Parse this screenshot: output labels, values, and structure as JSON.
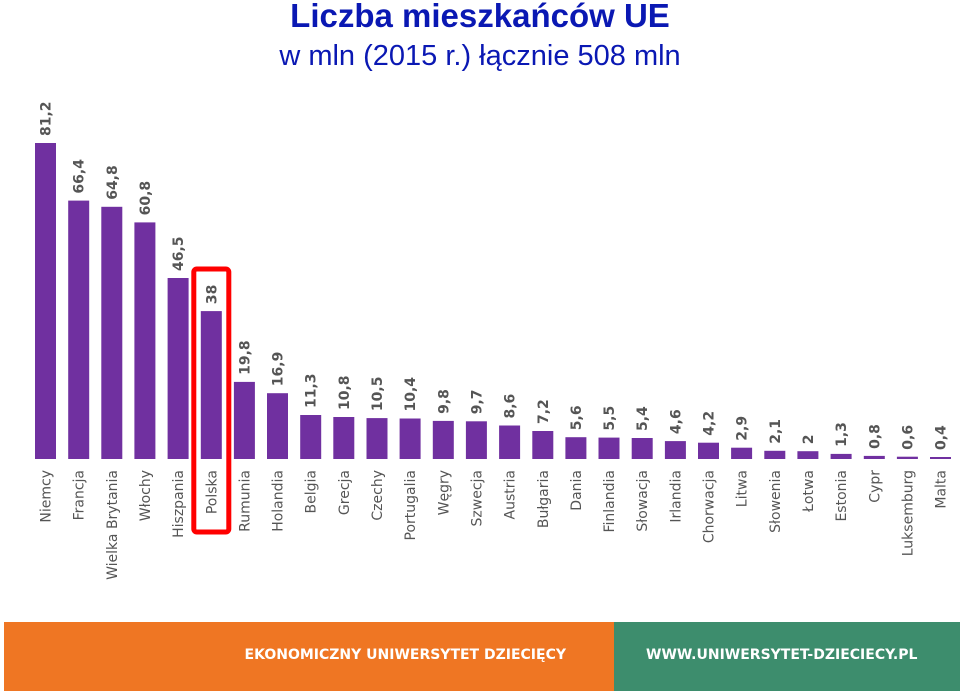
{
  "header": {
    "title": "Liczba mieszkańców UE",
    "subtitle": "w mln (2015 r.) łącznie 508 mln"
  },
  "footer": {
    "left_text": "EKONOMICZNY UNIWERSYTET DZIECIĘCY",
    "right_text": "WWW.UNIWERSYTET-DZIECIECY.PL",
    "left_color": "#ef7623",
    "right_color": "#3d8d6d"
  },
  "colors": {
    "bar": "#7030a0",
    "title": "#0a18b3",
    "highlight_border": "#ff0000",
    "labels": "#555555"
  },
  "chart_data": {
    "type": "bar",
    "title": "Liczba mieszkańców UE",
    "subtitle": "w mln (2015 r.) łącznie 508 mln",
    "xlabel": "",
    "ylabel": "",
    "ylim": [
      0,
      81.2
    ],
    "grid": false,
    "highlight": "Polska",
    "categories": [
      "Niemcy",
      "Francja",
      "Wielka Brytania",
      "Włochy",
      "Hiszpania",
      "Polska",
      "Rumunia",
      "Holandia",
      "Belgia",
      "Grecja",
      "Czechy",
      "Portugalia",
      "Węgry",
      "Szwecja",
      "Austria",
      "Bułgaria",
      "Dania",
      "Finlandia",
      "Słowacja",
      "Irlandia",
      "Chorwacja",
      "Litwa",
      "Słowenia",
      "Łotwa",
      "Estonia",
      "Cypr",
      "Luksemburg",
      "Malta"
    ],
    "labels": [
      "81,2",
      "66,4",
      "64,8",
      "60,8",
      "46,5",
      "38",
      "19,8",
      "16,9",
      "11,3",
      "10,8",
      "10,5",
      "10,4",
      "9,8",
      "9,7",
      "8,6",
      "7,2",
      "5,6",
      "5,5",
      "5,4",
      "4,6",
      "4,2",
      "2,9",
      "2,1",
      "2",
      "1,3",
      "0,8",
      "0,6",
      "0,4"
    ],
    "values": [
      81.2,
      66.4,
      64.8,
      60.8,
      46.5,
      38,
      19.8,
      16.9,
      11.3,
      10.8,
      10.5,
      10.4,
      9.8,
      9.7,
      8.6,
      7.2,
      5.6,
      5.5,
      5.4,
      4.6,
      4.2,
      2.9,
      2.1,
      2,
      1.3,
      0.8,
      0.6,
      0.4
    ]
  }
}
